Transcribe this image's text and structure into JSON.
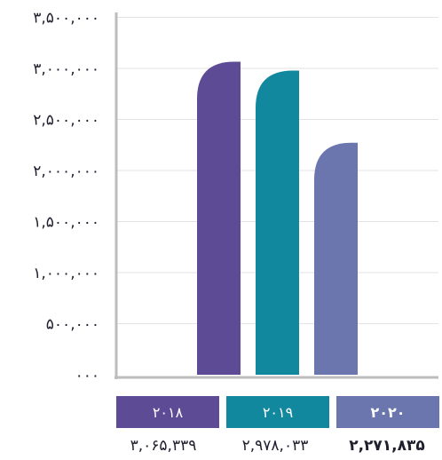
{
  "chart_data": {
    "type": "bar",
    "categories": [
      "۲۰۱۸",
      "۲۰۱۹",
      "۲۰۲۰"
    ],
    "values": [
      3065339,
      2978033,
      2271835
    ],
    "value_labels": [
      "۳,۰۶۵,۳۳۹",
      "۲,۹۷۸,۰۳۳",
      "۲,۲۷۱,۸۳۵"
    ],
    "ylim": [
      0,
      3500000
    ],
    "yticks": [
      0,
      500000,
      1000000,
      1500000,
      2000000,
      2500000,
      3000000,
      3500000
    ],
    "ytick_labels": [
      "۰۰۰",
      "۵۰۰,۰۰۰",
      "۱,۰۰۰,۰۰۰",
      "۱,۵۰۰,۰۰۰",
      "۲,۰۰۰,۰۰۰",
      "۲,۵۰۰,۰۰۰",
      "۳,۰۰۰,۰۰۰",
      "۳,۵۰۰,۰۰۰"
    ],
    "colors": [
      "#5e4b96",
      "#12889f",
      "#6a76ad"
    ],
    "grid": true,
    "title": "",
    "xlabel": "",
    "ylabel": ""
  }
}
